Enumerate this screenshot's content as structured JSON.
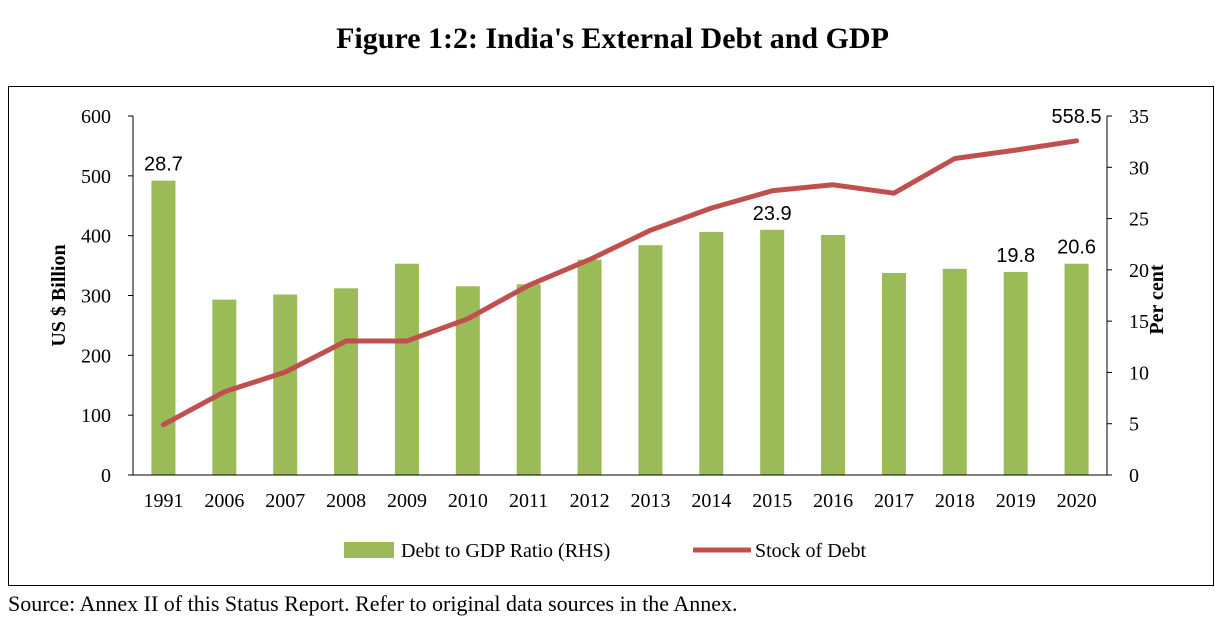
{
  "title": "Figure 1:2: India's External Debt and GDP",
  "source": "Source: Annex II of this Status Report. Refer to original data sources in the Annex.",
  "chart_data": {
    "type": "bar",
    "categories": [
      "1991",
      "2006",
      "2007",
      "2008",
      "2009",
      "2010",
      "2011",
      "2012",
      "2013",
      "2014",
      "2015",
      "2016",
      "2017",
      "2018",
      "2019",
      "2020"
    ],
    "series": [
      {
        "name": "Debt to GDP Ratio (RHS)",
        "type": "bar",
        "axis": "right",
        "color": "#9BBB59",
        "values": [
          28.7,
          17.1,
          17.6,
          18.2,
          20.6,
          18.4,
          18.6,
          21.0,
          22.4,
          23.7,
          23.9,
          23.4,
          19.7,
          20.1,
          19.8,
          20.6
        ]
      },
      {
        "name": "Stock of Debt",
        "type": "line",
        "axis": "left",
        "color": "#C0504D",
        "values": [
          84,
          139,
          172,
          224,
          224,
          261,
          317,
          360,
          409,
          446,
          475,
          485,
          471,
          529,
          543,
          558.5
        ]
      }
    ],
    "data_labels": [
      {
        "series": "Debt to GDP Ratio (RHS)",
        "category": "1991",
        "text": "28.7"
      },
      {
        "series": "Debt to GDP Ratio (RHS)",
        "category": "2015",
        "text": "23.9"
      },
      {
        "series": "Debt to GDP Ratio (RHS)",
        "category": "2019",
        "text": "19.8"
      },
      {
        "series": "Debt to GDP Ratio (RHS)",
        "category": "2020",
        "text": "20.6"
      },
      {
        "series": "Stock of Debt",
        "category": "2020",
        "text": "558.5"
      }
    ],
    "y_left": {
      "label": "US $ Billion",
      "min": 0,
      "max": 600,
      "ticks": [
        "0",
        "100",
        "200",
        "300",
        "400",
        "500",
        "600"
      ]
    },
    "y_right": {
      "label": "Per cent",
      "min": 0,
      "max": 35,
      "ticks": [
        "0",
        "5",
        "10",
        "15",
        "20",
        "25",
        "30",
        "35"
      ]
    },
    "legend": {
      "position": "bottom"
    },
    "grid": false
  }
}
